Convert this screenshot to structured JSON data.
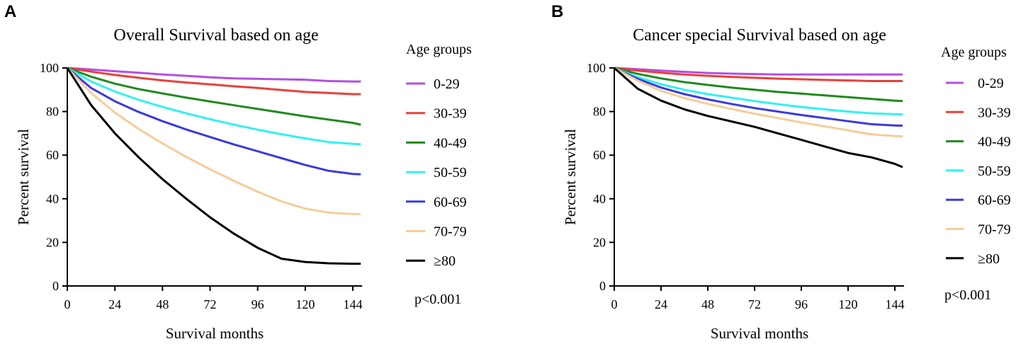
{
  "chart_data": [
    {
      "type": "line",
      "panel_label": "A",
      "title": "Overall Survival based on age",
      "xlabel": "Survival months",
      "ylabel": "Percent survival",
      "xlim": [
        0,
        144
      ],
      "ylim": [
        0,
        100
      ],
      "x_ticks": [
        0,
        24,
        48,
        72,
        96,
        120,
        144
      ],
      "y_ticks": [
        0,
        20,
        40,
        60,
        80,
        100
      ],
      "legend_title": "Age groups",
      "legend_position": "right",
      "annotation": "p<0.001",
      "x": [
        0,
        12,
        24,
        36,
        48,
        60,
        72,
        84,
        96,
        108,
        120,
        132,
        144,
        148
      ],
      "series": [
        {
          "name": "0-29",
          "color": "#b44fe0",
          "values": [
            100,
            99.3,
            98.5,
            97.8,
            97.0,
            96.4,
            95.7,
            95.2,
            95.0,
            94.8,
            94.6,
            94.0,
            93.8,
            93.8
          ]
        },
        {
          "name": "30-39",
          "color": "#e8403a",
          "values": [
            100,
            98.3,
            96.8,
            95.5,
            94.3,
            93.3,
            92.5,
            91.6,
            90.8,
            89.9,
            89.0,
            88.5,
            88.0,
            88.0
          ]
        },
        {
          "name": "40-49",
          "color": "#1e8a1e",
          "values": [
            100,
            96.0,
            92.8,
            90.3,
            88.3,
            86.4,
            84.6,
            82.9,
            81.2,
            79.5,
            77.8,
            76.3,
            74.8,
            74.0
          ]
        },
        {
          "name": "50-59",
          "color": "#33f0f0",
          "values": [
            100,
            93.8,
            89.2,
            85.4,
            82.1,
            79.2,
            76.5,
            74.0,
            71.7,
            69.6,
            67.7,
            66.0,
            65.2,
            65.0
          ]
        },
        {
          "name": "60-69",
          "color": "#3a3ae0",
          "values": [
            100,
            90.8,
            84.7,
            79.8,
            75.6,
            71.8,
            68.3,
            64.9,
            61.8,
            58.6,
            55.5,
            52.8,
            51.4,
            51.2
          ]
        },
        {
          "name": "70-79",
          "color": "#f5cc99",
          "values": [
            100,
            88.5,
            79.5,
            72.0,
            65.4,
            59.2,
            53.5,
            48.2,
            43.2,
            38.8,
            35.5,
            33.6,
            33.0,
            33.0
          ]
        },
        {
          "name": "≥80",
          "color": "#000000",
          "values": [
            100,
            83.0,
            70.0,
            59.0,
            49.0,
            40.0,
            31.5,
            24.0,
            17.5,
            12.5,
            11.0,
            10.4,
            10.2,
            10.2
          ]
        }
      ]
    },
    {
      "type": "line",
      "panel_label": "B",
      "title": "Cancer special Survival based on age",
      "xlabel": "Survival months",
      "ylabel": "Percent survival",
      "xlim": [
        0,
        144
      ],
      "ylim": [
        0,
        100
      ],
      "x_ticks": [
        0,
        24,
        48,
        72,
        96,
        120,
        144
      ],
      "y_ticks": [
        0,
        20,
        40,
        60,
        80,
        100
      ],
      "legend_title": "Age groups",
      "legend_position": "right",
      "annotation": "p<0.001",
      "x": [
        0,
        12,
        24,
        36,
        48,
        60,
        72,
        84,
        96,
        108,
        120,
        132,
        144,
        148
      ],
      "series": [
        {
          "name": "0-29",
          "color": "#b44fe0",
          "values": [
            100,
            99.4,
            98.8,
            98.2,
            97.7,
            97.4,
            97.2,
            97.0,
            97.0,
            97.0,
            97.0,
            97.0,
            97.0,
            97.0
          ]
        },
        {
          "name": "30-39",
          "color": "#e8403a",
          "values": [
            100,
            98.8,
            97.8,
            97.0,
            96.4,
            95.9,
            95.5,
            95.1,
            94.8,
            94.5,
            94.3,
            94.0,
            94.0,
            94.0
          ]
        },
        {
          "name": "40-49",
          "color": "#1e8a1e",
          "values": [
            100,
            97.3,
            95.2,
            93.5,
            92.2,
            91.0,
            90.0,
            89.0,
            88.2,
            87.4,
            86.6,
            85.8,
            85.0,
            84.8
          ]
        },
        {
          "name": "50-59",
          "color": "#33f0f0",
          "values": [
            100,
            95.8,
            92.5,
            90.0,
            88.0,
            86.4,
            84.8,
            83.4,
            82.1,
            81.0,
            80.0,
            79.2,
            78.8,
            78.7
          ]
        },
        {
          "name": "60-69",
          "color": "#3a3ae0",
          "values": [
            100,
            95.0,
            91.0,
            88.0,
            85.6,
            83.5,
            81.6,
            80.0,
            78.4,
            77.0,
            75.6,
            74.2,
            73.6,
            73.5
          ]
        },
        {
          "name": "70-79",
          "color": "#f5cc99",
          "values": [
            100,
            94.2,
            89.5,
            86.2,
            83.5,
            81.2,
            79.0,
            77.0,
            75.0,
            73.2,
            71.4,
            69.5,
            68.8,
            68.6
          ]
        },
        {
          "name": "≥80",
          "color": "#000000",
          "values": [
            100,
            90.5,
            85.0,
            81.0,
            78.0,
            75.5,
            73.0,
            70.0,
            67.0,
            64.0,
            61.0,
            59.0,
            56.0,
            54.5
          ]
        }
      ]
    }
  ]
}
